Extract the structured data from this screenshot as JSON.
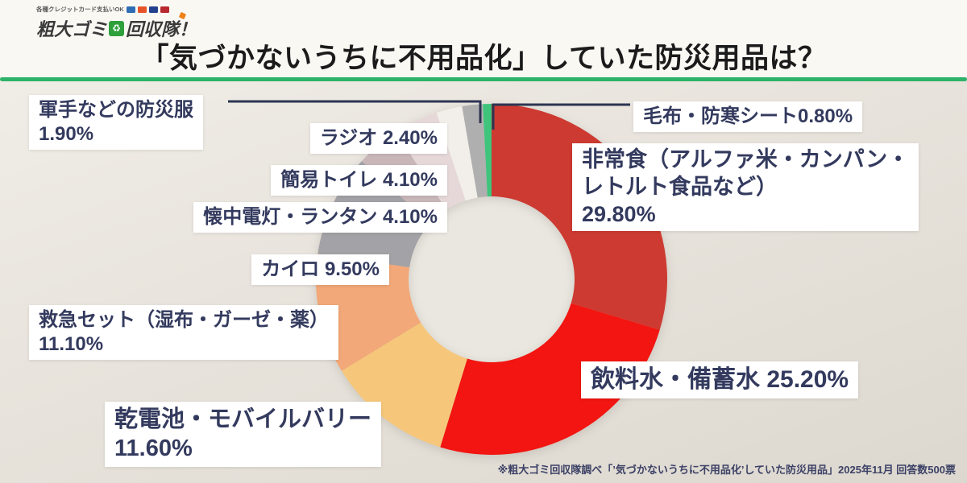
{
  "header": {
    "title": "「気づかないうちに不用品化」していた防災用品は？",
    "logo": {
      "tagline": "各種クレジットカード支払いOK",
      "name_left": "粗大ゴミ",
      "name_right": "回収隊！",
      "icon_glyph": "♻"
    }
  },
  "theme": {
    "accent_green": "#2eb269",
    "label_text": "#333a5e",
    "header_bg": "#faf8f3"
  },
  "chart_data": {
    "type": "pie",
    "donut": true,
    "title": "「気づかないうちに不用品化」していた防災用品は？",
    "unit": "%",
    "start": "top",
    "direction": "clockwise",
    "donut_hole_ratio": 0.47,
    "categories": [
      "非常食（アルファ米・カンパン・レトルト食品など）",
      "飲料水・備蓄水",
      "乾電池・モバイルバリー",
      "救急セット（湿布・ガーゼ・薬）",
      "カイロ",
      "懐中電灯・ランタン",
      "簡易トイレ",
      "ラジオ",
      "軍手などの防災服",
      "毛布・防寒シート"
    ],
    "values": [
      29.8,
      25.2,
      11.6,
      11.1,
      9.5,
      4.1,
      4.1,
      2.4,
      1.9,
      0.8
    ],
    "colors": [
      "#cd3a31",
      "#f21511",
      "#f6c77a",
      "#f2a878",
      "#a3a2a6",
      "#c9b6b9",
      "#e6d8d8",
      "#f2eee9",
      "#b0afb0",
      "#3fc47c"
    ]
  },
  "labels": {
    "gunte": {
      "lines": [
        "軍手などの防災服",
        "1.90%"
      ]
    },
    "radio": {
      "lines": [
        "ラジオ 2.40%"
      ]
    },
    "toilet": {
      "lines": [
        "簡易トイレ 4.10%"
      ]
    },
    "flashlight": {
      "lines": [
        "懐中電灯・ランタン 4.10%"
      ]
    },
    "kairo": {
      "lines": [
        "カイロ 9.50%"
      ]
    },
    "firstaid": {
      "lines": [
        "救急セット（湿布・ガーゼ・薬）",
        "11.10%"
      ]
    },
    "battery": {
      "lines": [
        "乾電池・モバイルバリー",
        "11.60%"
      ]
    },
    "blanket": {
      "lines": [
        "毛布・防寒シート0.80%"
      ]
    },
    "food": {
      "lines": [
        "非常食（アルファ米・カンパン・",
        "レトルト食品など）",
        "29.80%"
      ]
    },
    "water": {
      "lines": [
        "飲料水・備蓄水 25.20%"
      ]
    }
  },
  "footer": {
    "note": "※粗大ゴミ回収隊調べ「’気づかないうちに不用品化’していた防災用品」2025年11月 回答数500票"
  }
}
